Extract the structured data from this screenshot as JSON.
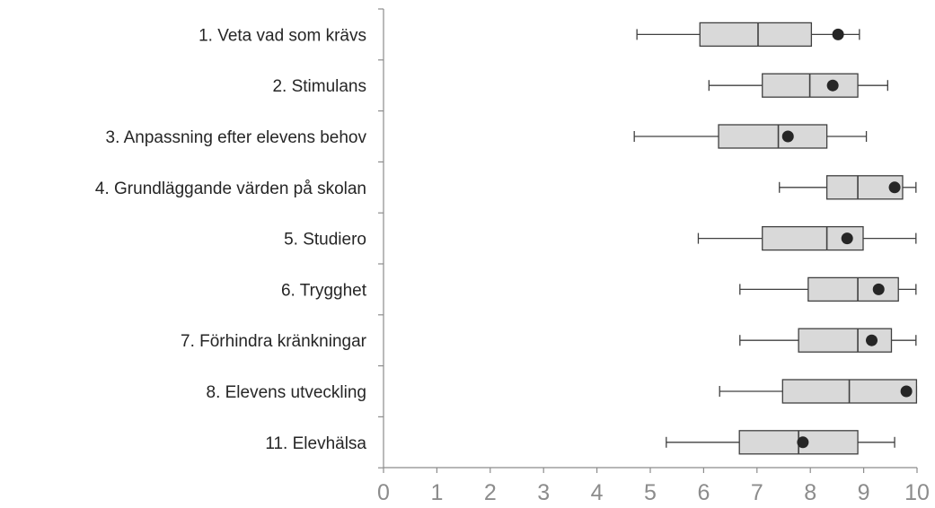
{
  "chart_data": {
    "type": "boxplot",
    "orientation": "horizontal",
    "xlim": [
      0,
      10
    ],
    "x_ticks": [
      "0",
      "1",
      "2",
      "3",
      "4",
      "5",
      "6",
      "7",
      "8",
      "9",
      "10"
    ],
    "colors": {
      "box_fill": "#d9d9d9",
      "box_stroke": "#404040",
      "mean_marker": "#262626",
      "axis": "#8c8c8c"
    },
    "categories": [
      {
        "label": "1. Veta vad som krävs",
        "min": 4.75,
        "q1": 5.93,
        "median": 7.02,
        "q3": 8.02,
        "max": 8.92,
        "mean": 8.52
      },
      {
        "label": "2. Stimulans",
        "min": 6.1,
        "q1": 7.1,
        "median": 7.99,
        "q3": 8.89,
        "max": 9.45,
        "mean": 8.42
      },
      {
        "label": "3. Anpassning efter elevens behov",
        "min": 4.7,
        "q1": 6.28,
        "median": 7.4,
        "q3": 8.31,
        "max": 9.05,
        "mean": 7.58
      },
      {
        "label": "4. Grundläggande värden på skolan",
        "min": 7.42,
        "q1": 8.31,
        "median": 8.89,
        "q3": 9.73,
        "max": 9.98,
        "mean": 9.58
      },
      {
        "label": "5. Studiero",
        "min": 5.9,
        "q1": 7.1,
        "median": 8.31,
        "q3": 8.99,
        "max": 9.98,
        "mean": 8.69
      },
      {
        "label": "6. Trygghet",
        "min": 6.68,
        "q1": 7.96,
        "median": 8.89,
        "q3": 9.65,
        "max": 9.98,
        "mean": 9.28
      },
      {
        "label": "7. Förhindra kränkningar",
        "min": 6.68,
        "q1": 7.78,
        "median": 8.89,
        "q3": 9.52,
        "max": 9.98,
        "mean": 9.15
      },
      {
        "label": "8. Elevens utveckling",
        "min": 6.3,
        "q1": 7.48,
        "median": 8.73,
        "q3": 9.99,
        "max": 9.99,
        "mean": 9.8
      },
      {
        "label": "11. Elevhälsa",
        "min": 5.3,
        "q1": 6.67,
        "median": 7.78,
        "q3": 8.89,
        "max": 9.58,
        "mean": 7.86
      }
    ]
  }
}
